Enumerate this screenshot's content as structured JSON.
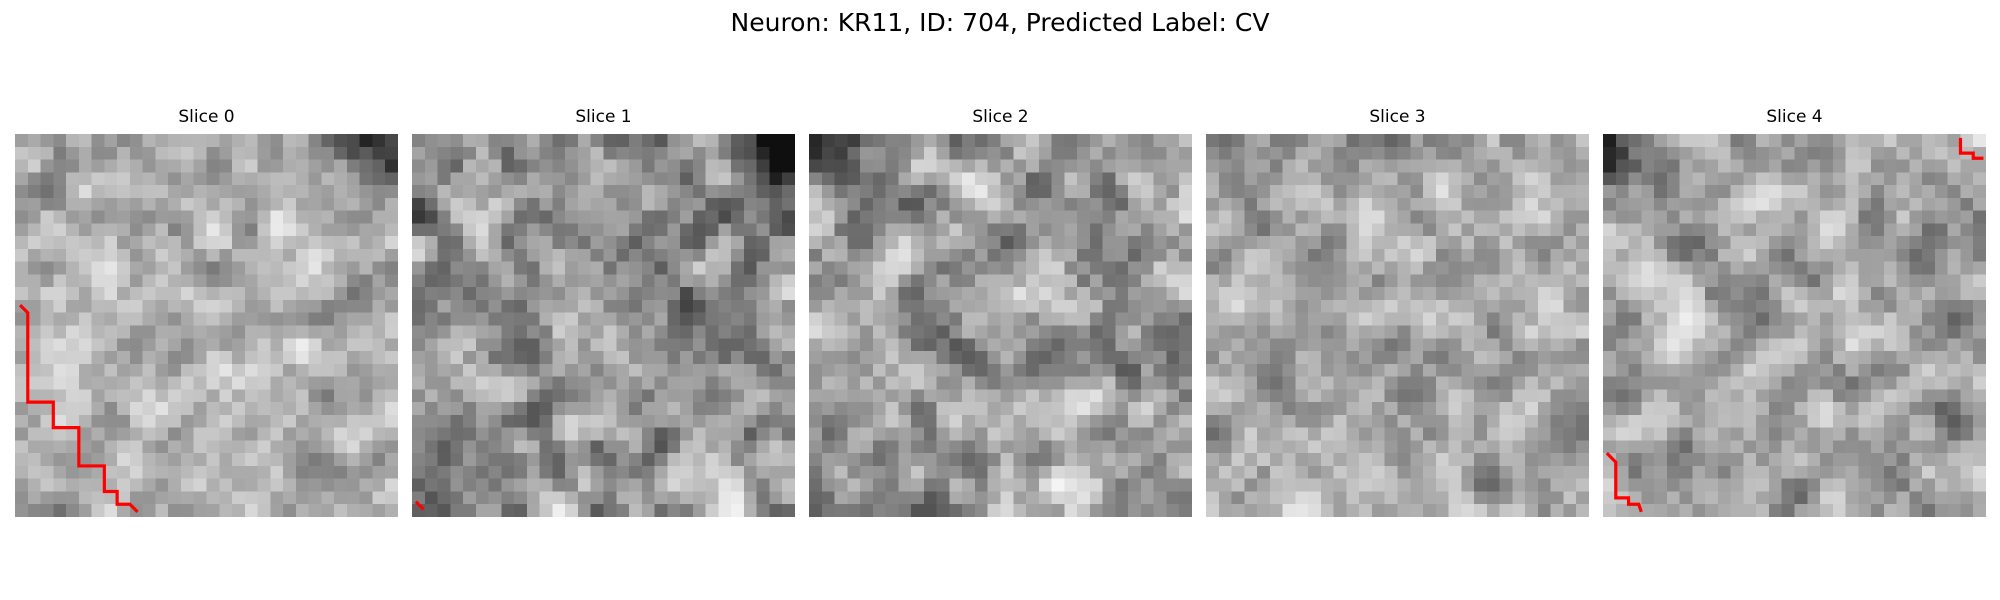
{
  "figure": {
    "title": "Neuron: KR11, ID: 704, Predicted Label: CV"
  },
  "panels": [
    {
      "title": "Slice 0"
    },
    {
      "title": "Slice 1"
    },
    {
      "title": "Slice 2"
    },
    {
      "title": "Slice 3"
    },
    {
      "title": "Slice 4"
    }
  ],
  "colors": {
    "background": "#ffffff",
    "contour": "#ff0000"
  }
}
